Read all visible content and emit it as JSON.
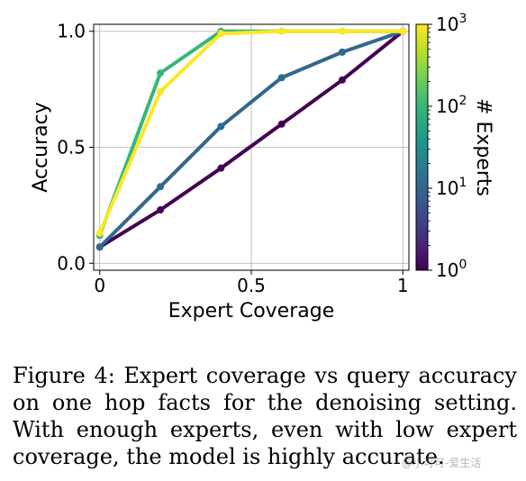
{
  "chart_data": {
    "type": "line",
    "xlabel": "Expert Coverage",
    "ylabel": "Accuracy",
    "xlim": [
      -0.02,
      1.02
    ],
    "ylim": [
      -0.03,
      1.03
    ],
    "x_ticks": [
      0,
      0.5,
      1
    ],
    "x_tick_labels": [
      "0",
      "0.5",
      "1"
    ],
    "y_ticks": [
      0.0,
      0.5,
      1.0
    ],
    "y_tick_labels": [
      "0.0",
      "0.5",
      "1.0"
    ],
    "grid": true,
    "x": [
      0,
      0.2,
      0.4,
      0.6,
      0.8,
      1.0
    ],
    "series": [
      {
        "experts": 1,
        "color": "#440154",
        "values": [
          0.07,
          0.23,
          0.41,
          0.6,
          0.79,
          1.0
        ]
      },
      {
        "experts": 10,
        "color": "#31688e",
        "values": [
          0.07,
          0.33,
          0.59,
          0.8,
          0.91,
          1.0
        ]
      },
      {
        "experts": 100,
        "color": "#35b779",
        "values": [
          0.12,
          0.82,
          1.0,
          1.0,
          1.0,
          1.0
        ]
      },
      {
        "experts": 1000,
        "color": "#fde725",
        "values": [
          0.13,
          0.74,
          0.99,
          1.0,
          1.0,
          1.0
        ]
      }
    ],
    "colorbar": {
      "label": "# Experts",
      "scale": "log",
      "range": [
        1,
        1000
      ],
      "ticks": [
        {
          "value": 1,
          "base": "10",
          "exp": "0"
        },
        {
          "value": 10,
          "base": "10",
          "exp": "1"
        },
        {
          "value": 100,
          "base": "10",
          "exp": "2"
        },
        {
          "value": 1000,
          "base": "10",
          "exp": "3"
        }
      ],
      "colors": [
        "#440154",
        "#482878",
        "#3e4989",
        "#31688e",
        "#26828e",
        "#1f9e89",
        "#35b779",
        "#6ece58",
        "#b5de2b",
        "#fde725"
      ]
    }
  },
  "caption": {
    "text": "Figure 4: Expert coverage vs query accuracy on one hop facts for the denoising setting. With enough experts, even with low expert coverage, the model is highly accurate."
  },
  "watermark": {
    "text": "@小可可-爱生活"
  }
}
